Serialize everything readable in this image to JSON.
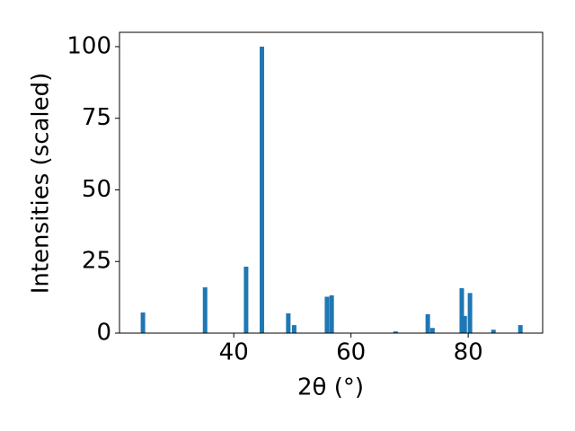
{
  "chart_data": {
    "type": "bar",
    "x_label": "2θ (°)",
    "y_label": "Intensities (scaled)",
    "x": [
      24.5,
      35.1,
      42.1,
      44.8,
      49.3,
      50.3,
      55.9,
      56.7,
      67.6,
      73.1,
      73.9,
      78.9,
      79.4,
      80.3,
      84.3,
      88.9
    ],
    "values": [
      7.2,
      16,
      23.2,
      100,
      6.9,
      2.8,
      12.7,
      13.2,
      0.6,
      6.6,
      1.8,
      15.7,
      6,
      14,
      1.2,
      2.8
    ],
    "color": "#1f77b4",
    "xlim": [
      20.5,
      92.7
    ],
    "xticks": [
      40,
      60,
      80
    ],
    "ylim": [
      0,
      105
    ],
    "yticks": [
      0,
      25,
      50,
      75,
      100
    ]
  }
}
